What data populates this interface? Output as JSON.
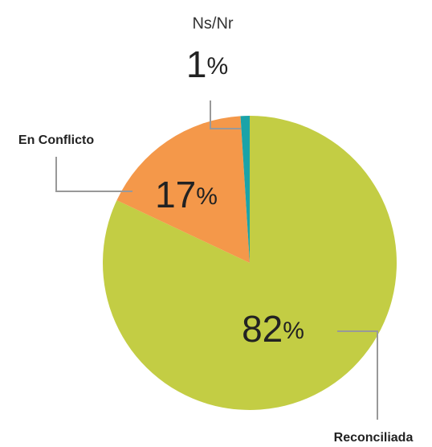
{
  "chart_data": {
    "type": "pie",
    "categories": [
      "Reconciliada",
      "En Conflicto",
      "Ns/Nr"
    ],
    "values": [
      82,
      17,
      1
    ],
    "value_labels": [
      "82%",
      "17%",
      "1%"
    ],
    "colors": [
      "#c3cd44",
      "#f4984a",
      "#1aa3a8"
    ]
  }
}
